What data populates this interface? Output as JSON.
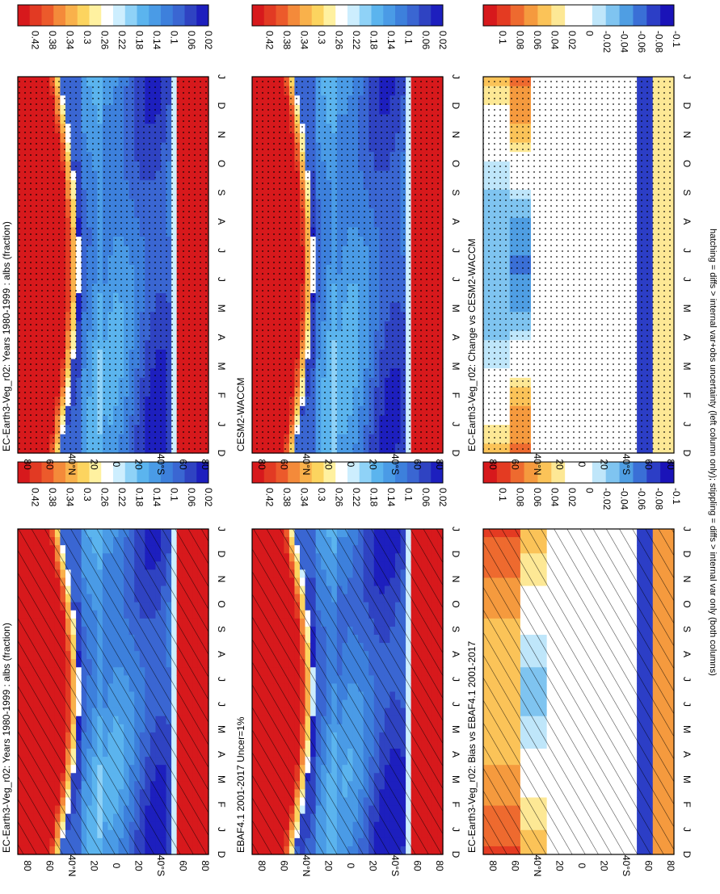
{
  "figure": {
    "footer_note": "hatching = diffs > internal var+obs uncertainty (left column only); stippling = diffs > internal var only (both columns)"
  },
  "palettes": {
    "field": [
      "#d7191c",
      "#e23a23",
      "#ec5a2b",
      "#f48a3a",
      "#f9b14b",
      "#fcd45f",
      "#fff1a0",
      "#ffffff",
      "#cdeefe",
      "#8fd2f7",
      "#5bb4ee",
      "#4a9be6",
      "#3d80dc",
      "#3a66d2",
      "#2f43c2",
      "#1d1fbe"
    ],
    "diff": [
      "#d7191c",
      "#e43b22",
      "#ee6a2f",
      "#f59a3e",
      "#fbc358",
      "#fde895",
      "#ffffff",
      "#ffffff",
      "#bfe6fa",
      "#7fc4f0",
      "#4f9ee3",
      "#3a6fd6",
      "#2c3ec6",
      "#1a13b8"
    ]
  },
  "colorbars": {
    "field": [
      "0.42",
      "0.38",
      "0.34",
      "0.3",
      "0.26",
      "0.22",
      "0.18",
      "0.14",
      "0.1",
      "0.06",
      "0.02"
    ],
    "diff": [
      "0.1",
      "0.08",
      "0.06",
      "0.04",
      "0.02",
      "0",
      "-0.02",
      "-0.04",
      "-0.06",
      "-0.08",
      "-0.1"
    ]
  },
  "axes": {
    "months": [
      "D",
      "J",
      "F",
      "M",
      "A",
      "M",
      "J",
      "J",
      "A",
      "S",
      "O",
      "N",
      "D",
      "J"
    ],
    "lat_ticks": [
      "80",
      "60",
      "40°N",
      "20",
      "0",
      "20",
      "40°S",
      "60",
      "80"
    ]
  },
  "chart_data": [
    {
      "type": "heatmap",
      "id": "top-left",
      "title": "EC-Earth3-Veg_r02: Years 1980-1999 : albs (fraction)",
      "palette": "field",
      "kind": "model",
      "overlay": "hatch",
      "x": "month",
      "y": "latitude",
      "ylim": [
        -90,
        90
      ],
      "levels": [
        0.02,
        0.06,
        0.1,
        0.14,
        0.18,
        0.22,
        0.26,
        0.3,
        0.34,
        0.38,
        0.42
      ]
    },
    {
      "type": "heatmap",
      "id": "top-right",
      "title": "EC-Earth3-Veg_r02: Years 1980-1999 : albs (fraction)",
      "palette": "field",
      "kind": "model",
      "overlay": "stipple",
      "x": "month",
      "y": "latitude",
      "ylim": [
        -90,
        90
      ],
      "levels": [
        0.02,
        0.06,
        0.1,
        0.14,
        0.18,
        0.22,
        0.26,
        0.3,
        0.34,
        0.38,
        0.42
      ]
    },
    {
      "type": "heatmap",
      "id": "middle-left",
      "title": "EBAF4.1 2001-2017 Uncer=1%",
      "palette": "field",
      "kind": "obs",
      "overlay": "hatch",
      "x": "month",
      "y": "latitude",
      "ylim": [
        -90,
        90
      ],
      "levels": [
        0.02,
        0.06,
        0.1,
        0.14,
        0.18,
        0.22,
        0.26,
        0.3,
        0.34,
        0.38,
        0.42
      ]
    },
    {
      "type": "heatmap",
      "id": "middle-right",
      "title": "CESM2-WACCM",
      "palette": "field",
      "kind": "model2",
      "overlay": "stipple",
      "x": "month",
      "y": "latitude",
      "ylim": [
        -90,
        90
      ],
      "levels": [
        0.02,
        0.06,
        0.1,
        0.14,
        0.18,
        0.22,
        0.26,
        0.3,
        0.34,
        0.38,
        0.42
      ]
    },
    {
      "type": "heatmap",
      "id": "bottom-left",
      "title": "EC-Earth3-Veg_r02: Bias vs EBAF4.1 2001-2017",
      "palette": "diff",
      "kind": "bias",
      "overlay": "hatch",
      "x": "month",
      "y": "latitude",
      "ylim": [
        -90,
        90
      ],
      "levels": [
        -0.1,
        -0.08,
        -0.06,
        -0.04,
        -0.02,
        0,
        0.02,
        0.04,
        0.06,
        0.08,
        0.1
      ]
    },
    {
      "type": "heatmap",
      "id": "bottom-right",
      "title": "EC-Earth3-Veg_r02: Change vs CESM2-WACCM",
      "palette": "diff",
      "kind": "change",
      "overlay": "stipple",
      "x": "month",
      "y": "latitude",
      "ylim": [
        -90,
        90
      ],
      "levels": [
        -0.1,
        -0.08,
        -0.06,
        -0.04,
        -0.02,
        0,
        0.02,
        0.04,
        0.06,
        0.08,
        0.1
      ]
    }
  ]
}
